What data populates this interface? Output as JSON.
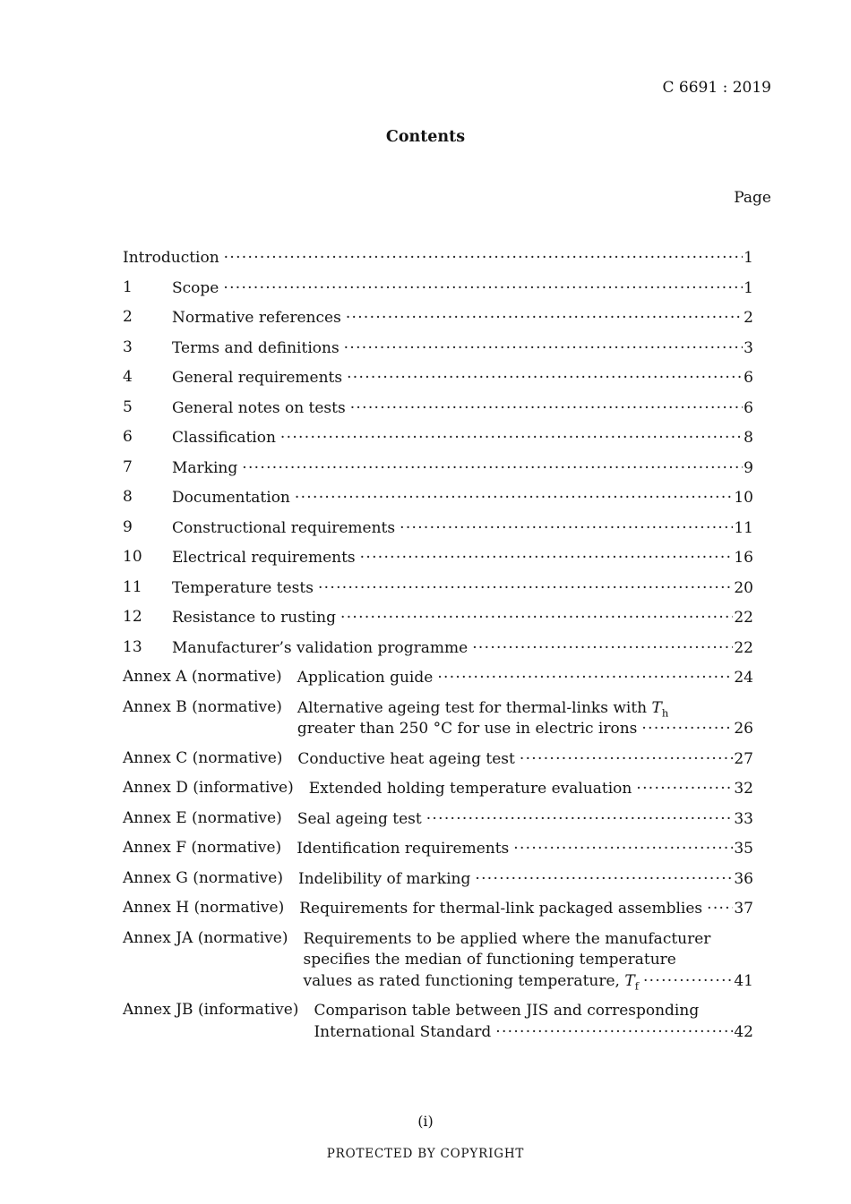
{
  "colors": {
    "background": "#ffffff",
    "text": "#141414"
  },
  "header": {
    "doc_number": "C 6691 : 2019"
  },
  "contents": {
    "title": "Contents",
    "page_column_label": "Page"
  },
  "toc": {
    "entries": [
      {
        "lines": [
          "Introduction"
        ],
        "page": "1"
      },
      {
        "num": "1",
        "lines": [
          "Scope"
        ],
        "page": "1"
      },
      {
        "num": "2",
        "lines": [
          "Normative references"
        ],
        "page": "2"
      },
      {
        "num": "3",
        "lines": [
          "Terms and definitions"
        ],
        "page": "3"
      },
      {
        "num": "4",
        "lines": [
          "General requirements"
        ],
        "page": "6"
      },
      {
        "num": "5",
        "lines": [
          "General notes on tests"
        ],
        "page": "6"
      },
      {
        "num": "6",
        "lines": [
          "Classification"
        ],
        "page": "8"
      },
      {
        "num": "7",
        "lines": [
          "Marking"
        ],
        "page": "9"
      },
      {
        "num": "8",
        "lines": [
          "Documentation"
        ],
        "page": "10"
      },
      {
        "num": "9",
        "lines": [
          "Constructional requirements"
        ],
        "page": "11"
      },
      {
        "num": "10",
        "lines": [
          "Electrical requirements"
        ],
        "page": "16"
      },
      {
        "num": "11",
        "lines": [
          "Temperature tests"
        ],
        "page": "20"
      },
      {
        "num": "12",
        "lines": [
          "Resistance to rusting"
        ],
        "page": "22"
      },
      {
        "num": "13",
        "lines": [
          "Manufacturer’s validation programme"
        ],
        "page": "22"
      },
      {
        "label": "Annex A (normative)",
        "lines": [
          "Application guide"
        ],
        "page": "24"
      },
      {
        "label": "Annex B (normative)",
        "lines": [
          [
            {
              "t": "Alternative ageing test for thermal-links with "
            },
            {
              "t": "T",
              "italic": true
            },
            {
              "t": "h",
              "sub": true
            }
          ],
          "greater than 250 °C for use in electric irons"
        ],
        "page": "26"
      },
      {
        "label": "Annex C (normative)",
        "lines": [
          "Conductive heat ageing test"
        ],
        "page": "27"
      },
      {
        "label": "Annex D (informative)",
        "lines": [
          "Extended holding temperature evaluation"
        ],
        "page": "32"
      },
      {
        "label": "Annex E (normative)",
        "lines": [
          "Seal ageing test"
        ],
        "page": "33"
      },
      {
        "label": "Annex F (normative)",
        "lines": [
          "Identification requirements"
        ],
        "page": "35"
      },
      {
        "label": "Annex G (normative)",
        "lines": [
          "Indelibility of marking"
        ],
        "page": "36"
      },
      {
        "label": "Annex H (normative)",
        "lines": [
          "Requirements for thermal-link packaged assemblies"
        ],
        "page": "37"
      },
      {
        "label": "Annex JA (normative)",
        "lines": [
          "Requirements to be applied where the manufacturer",
          "specifies the median of functioning temperature",
          [
            {
              "t": "values as rated functioning temperature, "
            },
            {
              "t": "T",
              "italic": true
            },
            {
              "t": "f",
              "sub": true
            }
          ]
        ],
        "page": "41"
      },
      {
        "label": "Annex JB (informative)",
        "lines": [
          "Comparison table between JIS and corresponding",
          "International Standard"
        ],
        "page": "42"
      }
    ]
  },
  "footer": {
    "page_indicator": "(i)",
    "copyright_notice": "PROTECTED BY COPYRIGHT"
  }
}
